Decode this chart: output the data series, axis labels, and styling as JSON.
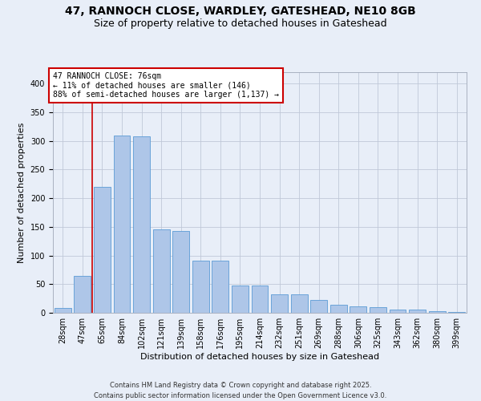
{
  "title_line1": "47, RANNOCH CLOSE, WARDLEY, GATESHEAD, NE10 8GB",
  "title_line2": "Size of property relative to detached houses in Gateshead",
  "xlabel": "Distribution of detached houses by size in Gateshead",
  "ylabel": "Number of detached properties",
  "categories": [
    "28sqm",
    "47sqm",
    "65sqm",
    "84sqm",
    "102sqm",
    "121sqm",
    "139sqm",
    "158sqm",
    "176sqm",
    "195sqm",
    "214sqm",
    "232sqm",
    "251sqm",
    "269sqm",
    "288sqm",
    "306sqm",
    "325sqm",
    "343sqm",
    "362sqm",
    "380sqm",
    "399sqm"
  ],
  "values": [
    9,
    65,
    220,
    310,
    308,
    145,
    143,
    91,
    91,
    48,
    48,
    32,
    32,
    22,
    14,
    11,
    10,
    5,
    5,
    3,
    2
  ],
  "bar_color": "#aec6e8",
  "bar_edge_color": "#5b9bd5",
  "vline_x": 1.5,
  "annotation_line1": "47 RANNOCH CLOSE: 76sqm",
  "annotation_line2": "← 11% of detached houses are smaller (146)",
  "annotation_line3": "88% of semi-detached houses are larger (1,137) →",
  "annotation_box_color": "#ffffff",
  "annotation_box_edge": "#cc0000",
  "vline_color": "#cc0000",
  "ylim": [
    0,
    420
  ],
  "yticks": [
    0,
    50,
    100,
    150,
    200,
    250,
    300,
    350,
    400
  ],
  "grid_color": "#c0c8d8",
  "background_color": "#e8eef8",
  "footer_line1": "Contains HM Land Registry data © Crown copyright and database right 2025.",
  "footer_line2": "Contains public sector information licensed under the Open Government Licence v3.0.",
  "title_fontsize": 10,
  "subtitle_fontsize": 9,
  "axis_label_fontsize": 8,
  "tick_fontsize": 7,
  "annotation_fontsize": 7,
  "footer_fontsize": 6
}
